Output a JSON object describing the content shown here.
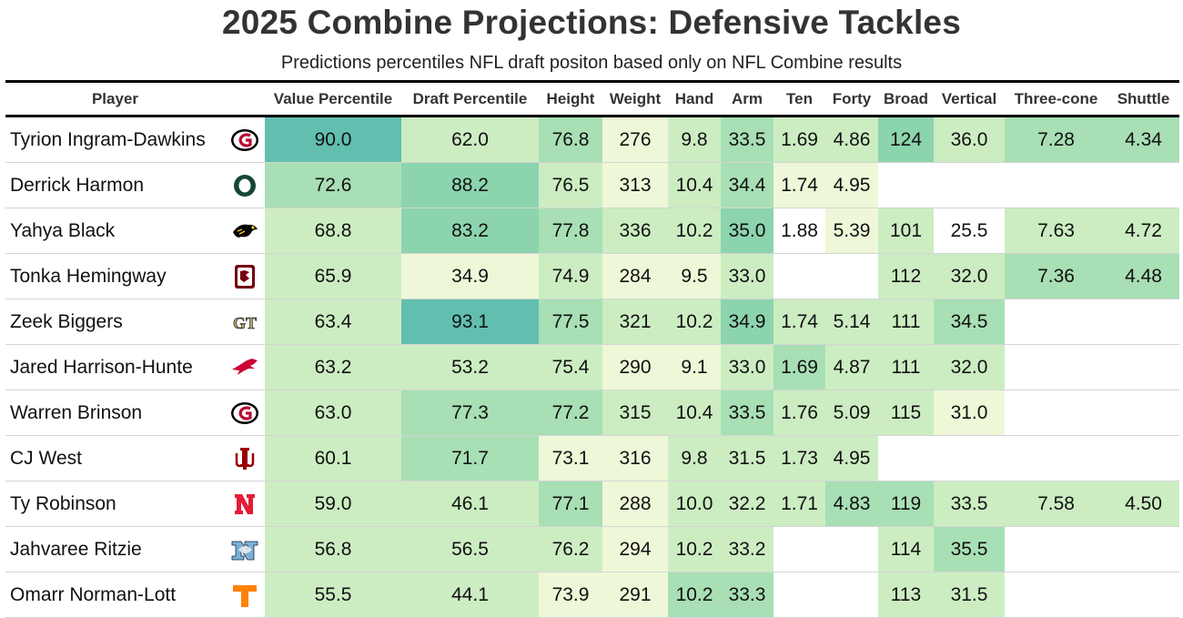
{
  "title": "2025 Combine Projections: Defensive Tackles",
  "subtitle": "Predictions percentiles NFL draft positon based only on NFL Combine results",
  "chart_data": {
    "type": "table",
    "title": "2025 Combine Projections: Defensive Tackles",
    "subtitle": "Predictions percentiles NFL draft positon based only on NFL Combine results",
    "columns": [
      "Player",
      "",
      "Value Percentile",
      "Draft Percentile",
      "Height",
      "Weight",
      "Hand",
      "Arm",
      "Ten",
      "Forty",
      "Broad",
      "Vertical",
      "Three-cone",
      "Shuttle"
    ],
    "rows": [
      [
        "Tyrion Ingram-Dawkins",
        "G",
        "90.0",
        "62.0",
        "76.8",
        "276",
        "9.8",
        "33.5",
        "1.69",
        "4.86",
        "124",
        "36.0",
        "7.28",
        "4.34"
      ],
      [
        "Derrick Harmon",
        "O",
        "72.6",
        "88.2",
        "76.5",
        "313",
        "10.4",
        "34.4",
        "1.74",
        "4.95",
        "",
        "",
        "",
        ""
      ],
      [
        "Yahya Black",
        "",
        "68.8",
        "83.2",
        "77.8",
        "336",
        "10.2",
        "35.0",
        "1.88",
        "5.39",
        "101",
        "25.5",
        "7.63",
        "4.72"
      ],
      [
        "Tonka Hemingway",
        "",
        "65.9",
        "34.9",
        "74.9",
        "284",
        "9.5",
        "33.0",
        "",
        "",
        "112",
        "32.0",
        "7.36",
        "4.48"
      ],
      [
        "Zeek Biggers",
        "GT",
        "63.4",
        "93.1",
        "77.5",
        "321",
        "10.2",
        "34.9",
        "1.74",
        "5.14",
        "111",
        "34.5",
        "",
        ""
      ],
      [
        "Jared Harrison-Hunte",
        "",
        "63.2",
        "53.2",
        "75.4",
        "290",
        "9.1",
        "33.0",
        "1.69",
        "4.87",
        "111",
        "32.0",
        "",
        ""
      ],
      [
        "Warren Brinson",
        "G",
        "63.0",
        "77.3",
        "77.2",
        "315",
        "10.4",
        "33.5",
        "1.76",
        "5.09",
        "115",
        "31.0",
        "",
        ""
      ],
      [
        "CJ West",
        "",
        "60.1",
        "71.7",
        "73.1",
        "316",
        "9.8",
        "31.5",
        "1.73",
        "4.95",
        "",
        "",
        "",
        ""
      ],
      [
        "Ty Robinson",
        "N",
        "59.0",
        "46.1",
        "77.1",
        "288",
        "10.0",
        "32.2",
        "1.71",
        "4.83",
        "119",
        "33.5",
        "7.58",
        "4.50"
      ],
      [
        "Jahvaree Ritzie",
        "NC",
        "56.8",
        "56.5",
        "76.2",
        "294",
        "10.2",
        "33.2",
        "",
        "",
        "114",
        "35.5",
        "",
        ""
      ]
    ],
    "cell_shades": [
      [
        0,
        0,
        5,
        2,
        3,
        1,
        2,
        3,
        2,
        2,
        4,
        2,
        3,
        3
      ],
      [
        0,
        0,
        3,
        4,
        2,
        1,
        2,
        3,
        1,
        1,
        -1,
        -1,
        -1,
        -1
      ],
      [
        0,
        0,
        2,
        4,
        3,
        2,
        2,
        4,
        0,
        1,
        2,
        0,
        2,
        2
      ],
      [
        0,
        0,
        2,
        1,
        2,
        1,
        1,
        2,
        -1,
        -1,
        2,
        2,
        3,
        3
      ],
      [
        0,
        0,
        2,
        5,
        3,
        2,
        2,
        4,
        2,
        2,
        2,
        3,
        -1,
        -1
      ],
      [
        0,
        0,
        2,
        2,
        2,
        1,
        1,
        2,
        3,
        2,
        2,
        2,
        -1,
        -1
      ],
      [
        0,
        0,
        2,
        3,
        3,
        2,
        2,
        3,
        2,
        2,
        2,
        1,
        -1,
        -1
      ],
      [
        0,
        0,
        2,
        3,
        1,
        1,
        2,
        2,
        2,
        2,
        -1,
        -1,
        -1,
        -1
      ],
      [
        0,
        0,
        2,
        2,
        3,
        1,
        2,
        2,
        2,
        3,
        3,
        2,
        2,
        2
      ],
      [
        0,
        0,
        2,
        2,
        2,
        1,
        2,
        2,
        -1,
        -1,
        2,
        3,
        -1,
        -1
      ]
    ],
    "shade_scale": [
      "#ffffff",
      "#eef8d8",
      "#ccedc2",
      "#a8dfb4",
      "#8cd4ae",
      "#62bfb0"
    ]
  },
  "logos": [
    "georgia",
    "oregon",
    "iowa",
    "south-carolina",
    "georgia-tech",
    "smu",
    "georgia",
    "indiana",
    "nebraska",
    "north-carolina"
  ],
  "logo_colors": {
    "georgia": "#ba0c2f",
    "oregon": "#154733",
    "iowa": "#000000",
    "south-carolina": "#73000a",
    "georgia-tech": "#b3a369",
    "smu": "#cc0035",
    "indiana": "#990000",
    "nebraska": "#e41c38",
    "north-carolina": "#7bafd4"
  },
  "partial_row": {
    "player": "Omarr Norman-Lott",
    "logo": "tennessee",
    "values": [
      "55.5",
      "44.1",
      "73.9",
      "291",
      "10.2",
      "33.3",
      "",
      "",
      "113",
      "31.5",
      "",
      ""
    ],
    "shades": [
      2,
      2,
      1,
      1,
      3,
      3,
      -1,
      -1,
      2,
      2,
      -1,
      -1
    ]
  }
}
